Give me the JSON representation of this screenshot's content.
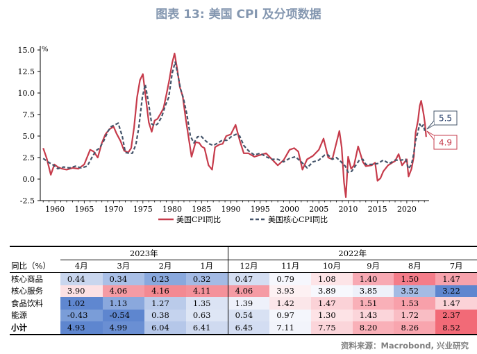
{
  "title": "图表 13: 美国 CPI 及分项数据",
  "source": "资料来源：Macrobond, 兴业研究",
  "chart_data": {
    "type": "line",
    "yunit": "%",
    "xlim": [
      1957.5,
      2023.8
    ],
    "ylim": [
      -2.5,
      15.0
    ],
    "yticks": [
      "15.0",
      "12.5",
      "10.0",
      "7.5",
      "5.0",
      "2.5",
      "0.0",
      "-2.5"
    ],
    "xticks": [
      "1960",
      "1965",
      "1970",
      "1975",
      "1980",
      "1985",
      "1990",
      "1995",
      "2000",
      "2005",
      "2010",
      "2015",
      "2020"
    ],
    "legend": "bottom",
    "grid": false,
    "series": [
      {
        "name": "美国CPI同比",
        "color": "#c63b4b",
        "style": "solid",
        "x": [
          1958,
          1958.6,
          1959.3,
          1959.9,
          1960.5,
          1961.2,
          1962,
          1963,
          1964,
          1965,
          1966,
          1966.6,
          1967.3,
          1968,
          1968.6,
          1969.3,
          1970,
          1970.5,
          1971.2,
          1971.8,
          1972.5,
          1973,
          1973.5,
          1974,
          1974.5,
          1975,
          1975.5,
          1976,
          1976.5,
          1977,
          1977.5,
          1978,
          1978.5,
          1979,
          1979.5,
          1980,
          1980.4,
          1980.8,
          1981.3,
          1981.8,
          1982.3,
          1982.8,
          1983.3,
          1984,
          1984.6,
          1985,
          1985.5,
          1986.2,
          1986.8,
          1987.3,
          1988,
          1988.6,
          1989.2,
          1990,
          1990.8,
          1991.5,
          1992.2,
          1993,
          1994,
          1995,
          1996,
          1997,
          1998,
          1999,
          2000,
          2000.8,
          2001.5,
          2002.2,
          2003,
          2004,
          2005,
          2005.8,
          2006.6,
          2007.3,
          2008,
          2008.5,
          2008.9,
          2009.3,
          2009.6,
          2010,
          2010.5,
          2011,
          2011.7,
          2012.5,
          2013,
          2014,
          2014.6,
          2015,
          2015.5,
          2016,
          2016.8,
          2017.5,
          2018,
          2018.6,
          2019.2,
          2020,
          2020.3,
          2020.8,
          2021.2,
          2021.5,
          2021.9,
          2022.2,
          2022.45,
          2022.7,
          2022.9,
          2023.1,
          2023.3
        ],
        "values": [
          3.6,
          2.4,
          0.5,
          1.7,
          1.4,
          1.2,
          1.1,
          1.3,
          1.2,
          1.7,
          3.4,
          3.2,
          2.5,
          4.2,
          5.2,
          5.8,
          6.1,
          5.3,
          4.4,
          3.3,
          3.1,
          3.6,
          6.0,
          9.5,
          11.5,
          12.2,
          9.4,
          6.6,
          5.5,
          6.8,
          7.0,
          7.6,
          8.2,
          9.8,
          11.5,
          13.5,
          14.6,
          13.0,
          10.7,
          9.6,
          7.0,
          4.8,
          2.6,
          4.3,
          4.2,
          3.8,
          3.6,
          1.6,
          1.1,
          3.7,
          4.0,
          4.1,
          5.0,
          5.2,
          6.3,
          4.5,
          3.0,
          3.0,
          2.6,
          2.8,
          3.0,
          2.3,
          1.6,
          2.2,
          3.4,
          3.6,
          3.2,
          1.1,
          2.3,
          2.7,
          3.4,
          4.7,
          2.5,
          2.3,
          4.2,
          5.6,
          3.7,
          -0.4,
          -2.1,
          2.6,
          1.2,
          1.6,
          3.8,
          2.0,
          1.5,
          1.6,
          1.9,
          -0.2,
          0.1,
          0.9,
          1.6,
          1.9,
          2.1,
          2.9,
          1.6,
          2.3,
          0.3,
          1.2,
          2.6,
          5.4,
          6.8,
          8.5,
          9.1,
          8.2,
          7.4,
          6.4,
          4.9
        ]
      },
      {
        "name": "美国核心CPI同比",
        "color": "#44546a",
        "style": "dashed",
        "x": [
          1958,
          1958.8,
          1959.8,
          1960.5,
          1961.5,
          1962.5,
          1963.5,
          1964.5,
          1965.5,
          1966.3,
          1967,
          1967.6,
          1968.3,
          1969,
          1969.6,
          1970.2,
          1970.8,
          1971.5,
          1972,
          1972.6,
          1973.2,
          1973.8,
          1974.3,
          1974.9,
          1975.4,
          1975.9,
          1976.5,
          1977,
          1977.5,
          1978.2,
          1978.8,
          1979.4,
          1980,
          1980.5,
          1981,
          1981.4,
          1981.9,
          1982.5,
          1983.1,
          1983.7,
          1984.3,
          1984.9,
          1985.6,
          1986.3,
          1987,
          1987.8,
          1988.5,
          1989.3,
          1990.2,
          1990.9,
          1991.5,
          1992.2,
          1993,
          1994,
          1995,
          1996,
          1997,
          1998,
          1999,
          2000,
          2001,
          2002,
          2003,
          2004,
          2005,
          2006,
          2006.6,
          2007.3,
          2008,
          2008.8,
          2009.5,
          2010,
          2010.6,
          2011.2,
          2011.9,
          2012.5,
          2013,
          2014,
          2015,
          2016,
          2017,
          2018,
          2019,
          2019.8,
          2020.3,
          2020.8,
          2021.2,
          2021.5,
          2021.9,
          2022.2,
          2022.45,
          2022.8,
          2023.1,
          2023.3
        ],
        "values": [
          2.4,
          2.0,
          1.6,
          1.2,
          1.4,
          1.3,
          1.5,
          1.3,
          1.5,
          2.5,
          3.3,
          3.6,
          4.4,
          5.5,
          6.1,
          6.3,
          6.5,
          4.9,
          3.1,
          3.0,
          3.0,
          4.0,
          6.0,
          9.5,
          11.0,
          9.1,
          6.4,
          6.2,
          6.4,
          7.2,
          8.5,
          9.5,
          12.3,
          13.6,
          12.0,
          10.5,
          9.4,
          7.5,
          5.0,
          4.2,
          4.9,
          5.0,
          4.5,
          4.1,
          3.9,
          4.2,
          4.5,
          4.5,
          5.0,
          5.2,
          5.0,
          3.9,
          3.3,
          2.8,
          3.0,
          2.6,
          2.3,
          2.3,
          2.0,
          2.4,
          2.6,
          2.0,
          1.3,
          2.0,
          2.2,
          2.8,
          2.8,
          2.3,
          2.5,
          2.0,
          1.5,
          0.8,
          0.9,
          1.5,
          2.2,
          2.3,
          1.7,
          1.7,
          1.8,
          2.2,
          1.8,
          2.2,
          2.2,
          2.3,
          1.2,
          1.7,
          3.0,
          4.5,
          5.5,
          6.4,
          6.0,
          6.3,
          5.5,
          5.5
        ]
      }
    ],
    "annotations": [
      {
        "label": "5.5",
        "series": "美国核心CPI同比",
        "value": 5.5
      },
      {
        "label": "4.9",
        "series": "美国CPI同比",
        "value": 4.9
      }
    ]
  },
  "table": {
    "header_label": "同比（%）",
    "years": [
      "2023年",
      "2022年"
    ],
    "months": [
      "4月",
      "3月",
      "2月",
      "1月",
      "12月",
      "11月",
      "10月",
      "9月",
      "8月",
      "7月"
    ],
    "rows": [
      {
        "label": "核心商品",
        "values": [
          "0.44",
          "0.34",
          "0.23",
          "0.32",
          "0.47",
          "0.79",
          "1.08",
          "1.40",
          "1.50",
          "1.47"
        ],
        "colors": [
          "#c9d6ee",
          "#a9bfe6",
          "#89a8dd",
          "#a3bae4",
          "#d4def2",
          "#f6f7fd",
          "#fde4e7",
          "#f8a9b3",
          "#f47c89",
          "#f7a2ac"
        ]
      },
      {
        "label": "核心服务",
        "values": [
          "3.90",
          "4.06",
          "4.16",
          "4.11",
          "4.06",
          "3.93",
          "3.89",
          "3.85",
          "3.52",
          "3.22"
        ],
        "colors": [
          "#fce1e4",
          "#f59ba4",
          "#f38992",
          "#f4919a",
          "#f59ba4",
          "#fdf1f3",
          "#f7f8fd",
          "#eef1fa",
          "#a4bbe4",
          "#5e86cf"
        ]
      },
      {
        "label": "食品饮料",
        "values": [
          "1.02",
          "1.13",
          "1.27",
          "1.35",
          "1.39",
          "1.42",
          "1.47",
          "1.51",
          "1.53",
          "1.47"
        ],
        "colors": [
          "#5f87d0",
          "#8aa8dd",
          "#bacbea",
          "#dbe3f4",
          "#eef1fa",
          "#fbe6e9",
          "#fbd2d7",
          "#f9b0b8",
          "#f8a0aa",
          "#fbd2d7"
        ]
      },
      {
        "label": "能源",
        "values": [
          "-0.43",
          "-0.54",
          "0.38",
          "0.63",
          "0.54",
          "0.97",
          "1.30",
          "1.43",
          "1.72",
          "2.37"
        ],
        "colors": [
          "#7a9dd8",
          "#5e86cf",
          "#c5d3ee",
          "#dee6f5",
          "#d8e1f3",
          "#f4f6fc",
          "#fde3e6",
          "#fbd5da",
          "#f9bdc4",
          "#f26a77"
        ]
      },
      {
        "label": "小计",
        "values": [
          "4.93",
          "4.99",
          "6.04",
          "6.41",
          "6.45",
          "7.11",
          "7.75",
          "8.20",
          "8.26",
          "8.52"
        ],
        "colors": [
          "#5e86cf",
          "#6a8fd3",
          "#b5c7e9",
          "#cfdaf0",
          "#d3ddf2",
          "#f2f4fb",
          "#fbd5da",
          "#f9b0b8",
          "#f8a5ae",
          "#f26a77"
        ]
      }
    ]
  }
}
